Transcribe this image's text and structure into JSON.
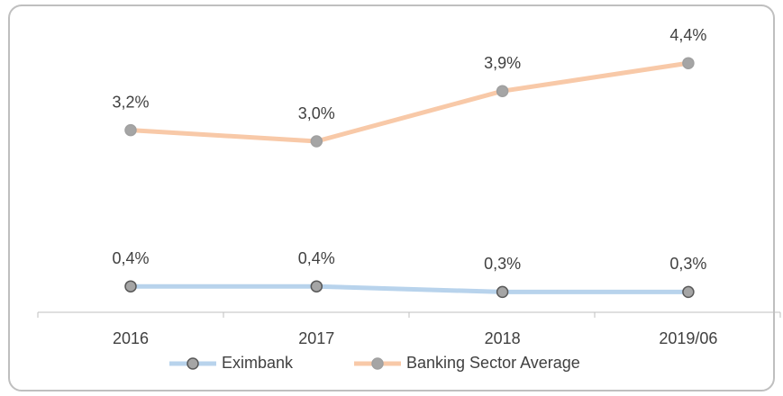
{
  "chart_data": {
    "type": "line",
    "categories": [
      "2016",
      "2017",
      "2018",
      "2019/06"
    ],
    "series": [
      {
        "name": "Eximbank",
        "color": "#b8d3ec",
        "values": [
          0.4,
          0.4,
          0.3,
          0.3
        ],
        "value_labels": [
          "0,4%",
          "0,4%",
          "0,3%",
          "0,3%"
        ]
      },
      {
        "name": "Banking Sector Average",
        "color": "#f8c9a8",
        "values": [
          3.2,
          3.0,
          3.9,
          4.4
        ],
        "value_labels": [
          "3,2%",
          "3,0%",
          "3,9%",
          "4,4%"
        ]
      }
    ]
  }
}
